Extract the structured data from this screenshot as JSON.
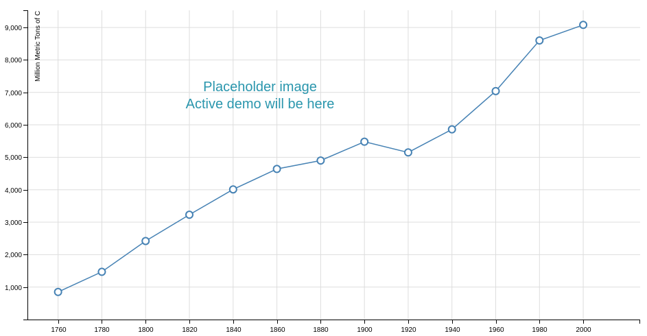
{
  "chart_data": {
    "type": "line",
    "x": [
      1760,
      1780,
      1800,
      1820,
      1840,
      1860,
      1880,
      1900,
      1920,
      1940,
      1960,
      1980,
      2000
    ],
    "series": [
      {
        "values": [
          850,
          1470,
          2420,
          3230,
          4010,
          4640,
          4900,
          5480,
          5150,
          5860,
          7040,
          8600,
          9080
        ]
      }
    ],
    "xticks": [
      "1760",
      "1780",
      "1800",
      "1820",
      "1840",
      "1860",
      "1880",
      "1900",
      "1920",
      "1940",
      "1960",
      "1980",
      "2000"
    ],
    "yticks": [
      "1,000",
      "2,000",
      "3,000",
      "4,000",
      "5,000",
      "6,000",
      "7,000",
      "8,000",
      "9,000"
    ],
    "ytick_values": [
      1000,
      2000,
      3000,
      4000,
      5000,
      6000,
      7000,
      8000,
      9000
    ],
    "xlabel": "",
    "ylabel": "Million Metric Tons of C",
    "xlim": [
      1746,
      2026
    ],
    "ylim": [
      0,
      9530
    ],
    "grid": true,
    "line_color": "#4682b4",
    "grid_color": "#dddddd",
    "annotation": {
      "line1": "Placeholder image",
      "line2": "Active demo will be here",
      "color": "#2a96ad"
    }
  }
}
